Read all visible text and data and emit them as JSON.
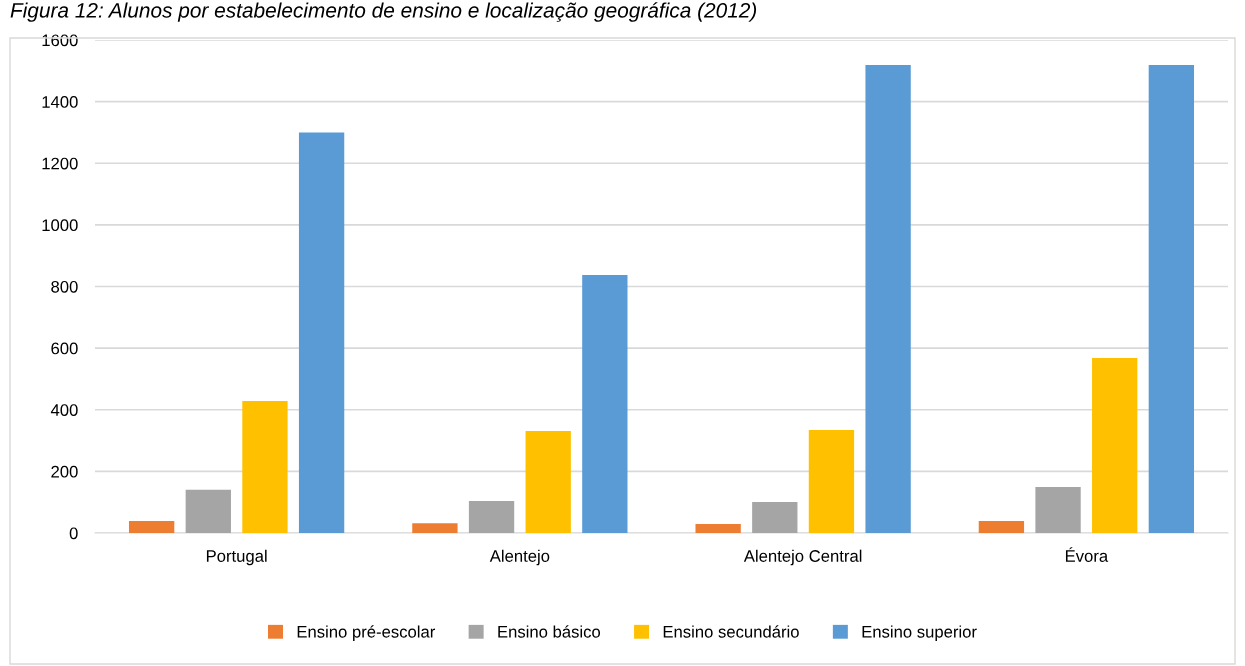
{
  "chart_data": {
    "type": "bar",
    "title": "Figura 12: Alunos por estabelecimento de ensino e localização geográfica (2012)",
    "categories": [
      "Portugal",
      "Alentejo",
      "Alentejo Central",
      "Évora"
    ],
    "series": [
      {
        "name": "Ensino pré-escolar",
        "color": "#ed7d31",
        "values": [
          39,
          32,
          29,
          39
        ]
      },
      {
        "name": "Ensino básico",
        "color": "#a5a5a5",
        "values": [
          140,
          104,
          101,
          149
        ]
      },
      {
        "name": "Ensino secundário",
        "color": "#ffc000",
        "values": [
          428,
          331,
          334,
          568
        ]
      },
      {
        "name": "Ensino superior",
        "color": "#5b9bd5",
        "values": [
          1300,
          837,
          1519,
          1519
        ]
      }
    ],
    "ylim": [
      0,
      1600
    ],
    "yticks": [
      0,
      200,
      400,
      600,
      800,
      1000,
      1200,
      1400,
      1600
    ],
    "grid": "y",
    "legend": "bottom"
  }
}
